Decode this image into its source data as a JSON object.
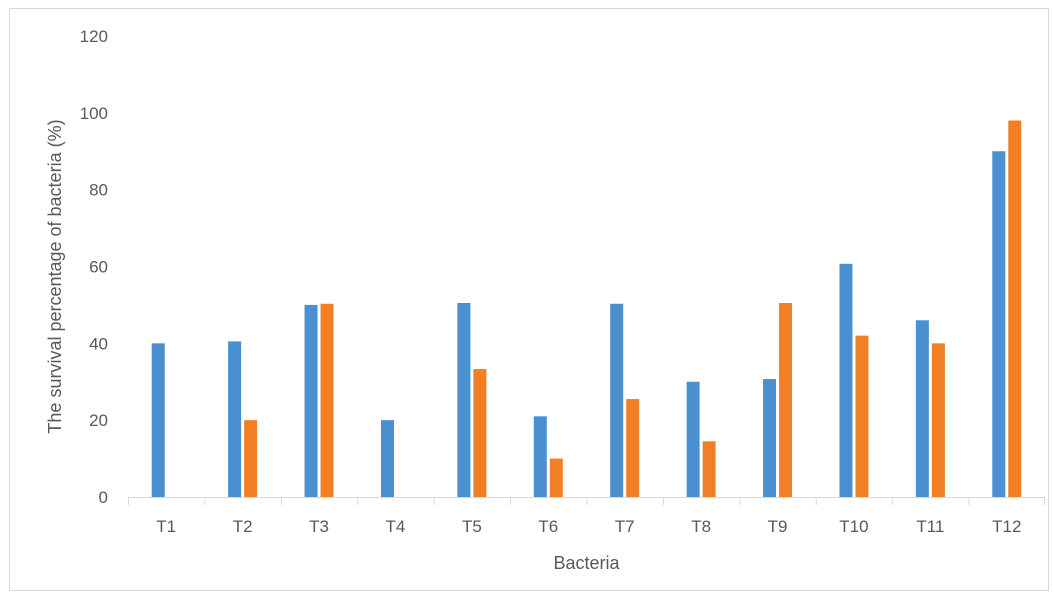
{
  "chart_data": {
    "type": "bar",
    "title": "",
    "xlabel": "Bacteria",
    "ylabel": "The survival percentage of bacteria (%)",
    "ylim": [
      0,
      120
    ],
    "yticks": [
      0,
      20,
      40,
      60,
      80,
      100,
      120
    ],
    "grid": false,
    "legend": "none",
    "categories": [
      "T1",
      "T2",
      "T3",
      "T4",
      "T5",
      "T6",
      "T7",
      "T8",
      "T9",
      "T10",
      "T11",
      "T12"
    ],
    "series": [
      {
        "color": "#4a8fd0",
        "values": [
          40,
          40.5,
          50,
          20,
          50.5,
          21,
          50.3,
          30,
          30.7,
          60.7,
          46,
          90
        ]
      },
      {
        "color": "#f07f26",
        "values": [
          0,
          20,
          50.3,
          0,
          33.3,
          10,
          25.5,
          14.5,
          50.5,
          42,
          40,
          98
        ]
      }
    ]
  }
}
